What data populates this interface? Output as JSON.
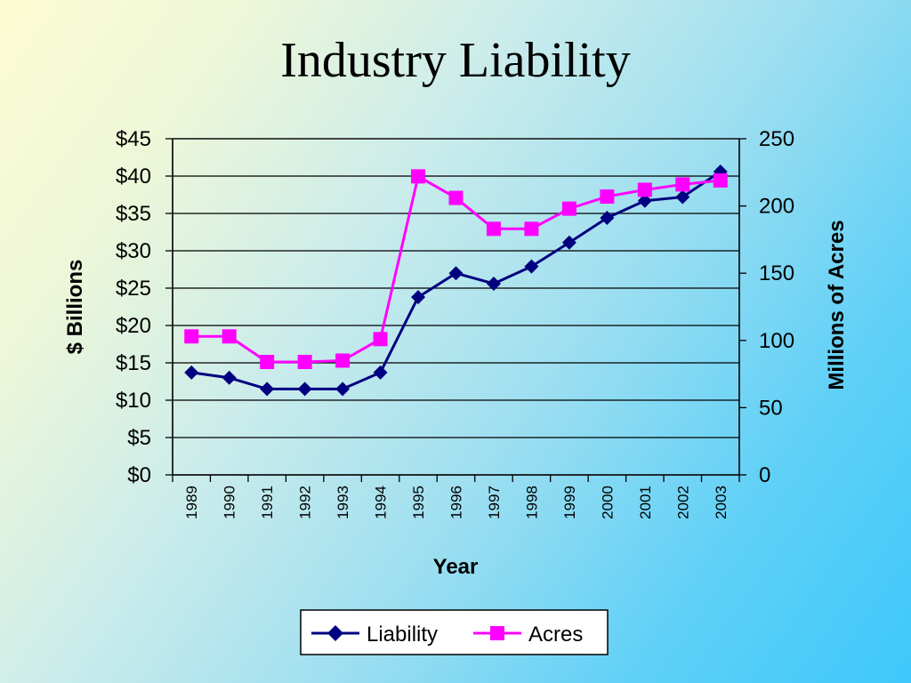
{
  "slide": {
    "title": "Industry Liability"
  },
  "chart_data": {
    "type": "line",
    "title": "",
    "xlabel": "Year",
    "ylabel": "$ Billions",
    "y2label": "Millions of Acres",
    "categories": [
      "1989",
      "1990",
      "1991",
      "1992",
      "1993",
      "1994",
      "1995",
      "1996",
      "1997",
      "1998",
      "1999",
      "2000",
      "2001",
      "2002",
      "2003"
    ],
    "ylim": [
      0,
      45
    ],
    "y_ticks": [
      "$0",
      "$5",
      "$10",
      "$15",
      "$20",
      "$25",
      "$30",
      "$35",
      "$40",
      "$45"
    ],
    "y2lim": [
      0,
      250
    ],
    "y2_ticks": [
      "0",
      "50",
      "100",
      "150",
      "200",
      "250"
    ],
    "grid": true,
    "legend_position": "bottom",
    "series": [
      {
        "name": "Liability",
        "axis": "left",
        "color": "#000080",
        "marker": "diamond",
        "values": [
          13.7,
          13.0,
          11.5,
          11.5,
          11.5,
          13.7,
          23.8,
          27.0,
          25.6,
          27.9,
          31.1,
          34.4,
          36.7,
          37.2,
          40.6
        ]
      },
      {
        "name": "Acres",
        "axis": "right",
        "color": "#ff00ff",
        "marker": "square",
        "values": [
          103,
          103,
          84,
          84,
          85,
          101,
          222,
          206,
          183,
          183,
          198,
          207,
          212,
          216,
          219
        ]
      }
    ]
  }
}
